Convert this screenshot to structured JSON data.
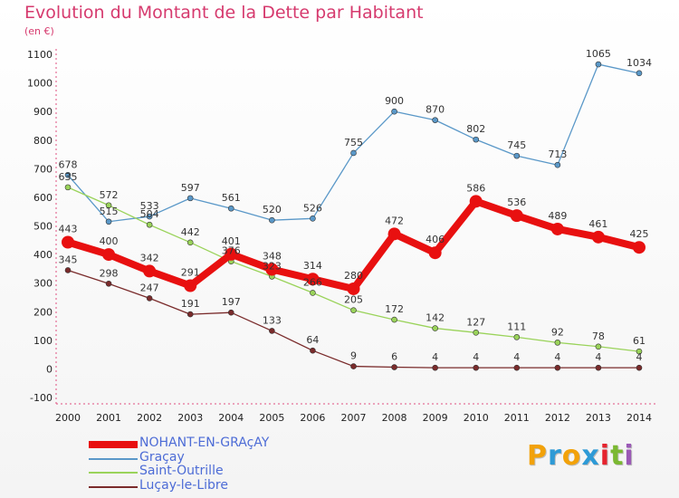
{
  "chart_data": {
    "type": "line",
    "title": "Evolution du Montant de la Dette par Habitant",
    "subtitle": "(en €)",
    "x": [
      "2000",
      "2001",
      "2002",
      "2003",
      "2004",
      "2005",
      "2006",
      "2007",
      "2008",
      "2009",
      "2010",
      "2011",
      "2012",
      "2013",
      "2014"
    ],
    "ylim": [
      -100,
      1100
    ],
    "yticks": [
      -100,
      0,
      100,
      200,
      300,
      400,
      500,
      600,
      700,
      800,
      900,
      1000,
      1100
    ],
    "grid": false,
    "legend_position": "bottom-left",
    "series": [
      {
        "name": "NOHANT-EN-GRAçAY",
        "color": "#e81010",
        "values": [
          443,
          400,
          342,
          291,
          401,
          348,
          314,
          280,
          472,
          406,
          586,
          536,
          489,
          461,
          425
        ]
      },
      {
        "name": "Graçay",
        "color": "#5a98c8",
        "values": [
          678,
          515,
          533,
          597,
          561,
          520,
          526,
          755,
          900,
          870,
          802,
          745,
          713,
          1065,
          1034
        ]
      },
      {
        "name": "Saint-Outrille",
        "color": "#9ad35a",
        "values": [
          635,
          572,
          504,
          442,
          376,
          323,
          266,
          205,
          172,
          142,
          127,
          111,
          92,
          78,
          61
        ]
      },
      {
        "name": "Luçay-le-Libre",
        "color": "#7a2b2b",
        "values": [
          345,
          298,
          247,
          191,
          197,
          133,
          64,
          9,
          6,
          4,
          4,
          4,
          4,
          4,
          4
        ]
      }
    ]
  },
  "branding": {
    "logo_letters": [
      "P",
      "r",
      "o",
      "x",
      "i",
      "t",
      "i"
    ],
    "logo_colors": [
      "#f2a20a",
      "#2e9ad6",
      "#f2a20a",
      "#2e9ad6",
      "#e5232e",
      "#7bb832",
      "#9b59b6"
    ]
  }
}
